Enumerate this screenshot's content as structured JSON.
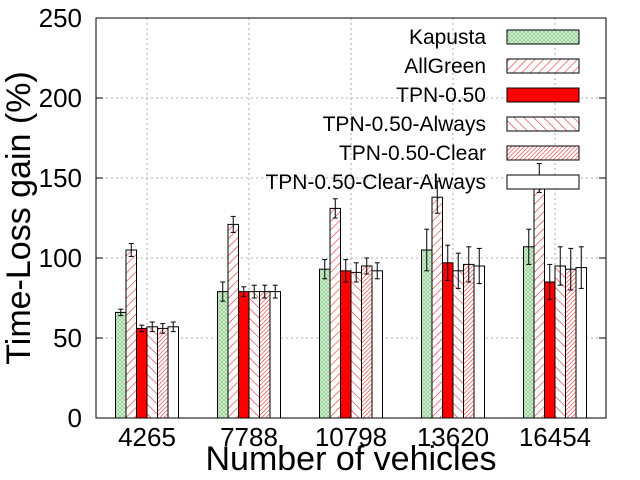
{
  "chart_data": {
    "type": "bar",
    "title": "",
    "xlabel": "Number of vehicles",
    "ylabel": "Time-Loss gain (%)",
    "ylim": [
      0,
      250
    ],
    "yticks": [
      0,
      50,
      100,
      150,
      200,
      250
    ],
    "grid": true,
    "legend_position": "top-right",
    "categories": [
      "4265",
      "7788",
      "10798",
      "13620",
      "16454"
    ],
    "series": [
      {
        "name": "Kapusta",
        "values": [
          66,
          79,
          93,
          105,
          107
        ],
        "err": [
          2,
          6,
          6,
          13,
          11
        ],
        "pattern": "green-hatch"
      },
      {
        "name": "AllGreen",
        "values": [
          105,
          121,
          131,
          138,
          150
        ],
        "err": [
          4,
          5,
          6,
          10,
          9
        ],
        "pattern": "red-diag"
      },
      {
        "name": "TPN-0.50",
        "values": [
          56,
          79,
          92,
          97,
          85
        ],
        "err": [
          2,
          3,
          7,
          11,
          11
        ],
        "pattern": "solid-red"
      },
      {
        "name": "TPN-0.50-Always",
        "values": [
          57,
          79,
          91,
          92,
          95
        ],
        "err": [
          3,
          4,
          6,
          11,
          12
        ],
        "pattern": "red-diag-sparse"
      },
      {
        "name": "TPN-0.50-Clear",
        "values": [
          56,
          79,
          95,
          96,
          93
        ],
        "err": [
          3,
          4,
          5,
          11,
          13
        ],
        "pattern": "red-diag-dense"
      },
      {
        "name": "TPN-0.50-Clear-Always",
        "values": [
          57,
          79,
          92,
          95,
          94
        ],
        "err": [
          3,
          4,
          5,
          11,
          13
        ],
        "pattern": "white"
      }
    ]
  }
}
